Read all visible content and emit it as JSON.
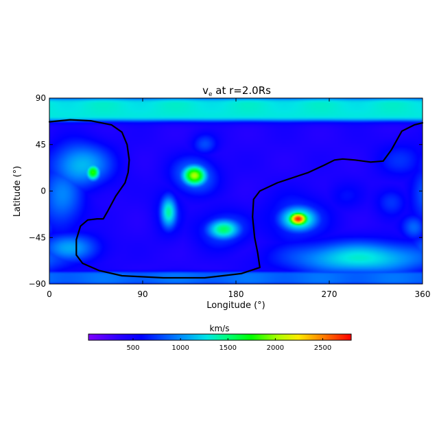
{
  "chart_data": {
    "type": "heatmap",
    "title": "v",
    "title_subscript": "e",
    "title_suffix": " at r=2.0Rs",
    "xlabel": "Longitude (°)",
    "ylabel": "Latitude (°)",
    "xlim": [
      0,
      360
    ],
    "ylim": [
      -90,
      90
    ],
    "x_ticks": [
      "0",
      "90",
      "180",
      "270",
      "360"
    ],
    "x_tick_values": [
      0,
      90,
      180,
      270,
      360
    ],
    "y_ticks": [
      "90",
      "45",
      "0",
      "−45",
      "−90"
    ],
    "y_tick_values": [
      90,
      45,
      0,
      -45,
      -90
    ],
    "colorbar": {
      "label": "km/s",
      "range": [
        30,
        2800
      ],
      "ticks": [
        "500",
        "1000",
        "1500",
        "2000",
        "2500"
      ],
      "tick_values": [
        500,
        1000,
        1500,
        2000,
        2500
      ],
      "colormap": "rainbow",
      "orientation": "horizontal"
    },
    "background_speed": 420,
    "features": [
      {
        "kind": "band",
        "lat_min": 68,
        "lat_max": 90,
        "value": 1300
      },
      {
        "kind": "band",
        "lat_min": -90,
        "lat_max": -78,
        "value": 900
      },
      {
        "kind": "blob",
        "lon": 140,
        "lat": 15,
        "rlon": 12,
        "rlat": 10,
        "value": 2050
      },
      {
        "kind": "blob",
        "lon": 140,
        "lat": 15,
        "rlon": 22,
        "rlat": 18,
        "value": 1000
      },
      {
        "kind": "blob",
        "lon": 240,
        "lat": -27,
        "rlon": 10,
        "rlat": 7,
        "value": 2750
      },
      {
        "kind": "blob",
        "lon": 240,
        "lat": -27,
        "rlon": 18,
        "rlat": 12,
        "value": 1650
      },
      {
        "kind": "blob",
        "lon": 240,
        "lat": -27,
        "rlon": 32,
        "rlat": 24,
        "value": 800
      },
      {
        "kind": "blob",
        "lon": 168,
        "lat": -37,
        "rlon": 16,
        "rlat": 10,
        "value": 1550
      },
      {
        "kind": "blob",
        "lon": 168,
        "lat": -37,
        "rlon": 26,
        "rlat": 18,
        "value": 850
      },
      {
        "kind": "blob",
        "lon": 115,
        "lat": -20,
        "rlon": 8,
        "rlat": 16,
        "value": 1400
      },
      {
        "kind": "blob",
        "lon": 115,
        "lat": -20,
        "rlon": 14,
        "rlat": 24,
        "value": 750
      },
      {
        "kind": "blob",
        "lon": 42,
        "lat": 18,
        "rlon": 7,
        "rlat": 8,
        "value": 1800
      },
      {
        "kind": "blob",
        "lon": 30,
        "lat": 25,
        "rlon": 30,
        "rlat": 22,
        "value": 1150
      },
      {
        "kind": "blob",
        "lon": 12,
        "lat": -5,
        "rlon": 22,
        "rlat": 35,
        "value": 950
      },
      {
        "kind": "blob",
        "lon": 150,
        "lat": 45,
        "rlon": 12,
        "rlat": 10,
        "value": 800
      },
      {
        "kind": "blob",
        "lon": 300,
        "lat": -65,
        "rlon": 70,
        "rlat": 16,
        "value": 1300
      },
      {
        "kind": "blob",
        "lon": 340,
        "lat": 30,
        "rlon": 25,
        "rlat": 18,
        "value": 700
      },
      {
        "kind": "blob",
        "lon": 330,
        "lat": -10,
        "rlon": 15,
        "rlat": 14,
        "value": 750
      },
      {
        "kind": "blob",
        "lon": 352,
        "lat": -35,
        "rlon": 12,
        "rlat": 12,
        "value": 900
      },
      {
        "kind": "blob",
        "lon": 285,
        "lat": -5,
        "rlon": 18,
        "rlat": 14,
        "value": 600
      },
      {
        "kind": "blob",
        "lon": 20,
        "lat": -55,
        "rlon": 30,
        "rlat": 14,
        "value": 1050
      }
    ],
    "contour": [
      [
        0,
        67
      ],
      [
        20,
        69
      ],
      [
        40,
        68
      ],
      [
        60,
        64
      ],
      [
        70,
        57
      ],
      [
        75,
        45
      ],
      [
        77,
        30
      ],
      [
        76,
        18
      ],
      [
        73,
        8
      ],
      [
        64,
        -5
      ],
      [
        56,
        -20
      ],
      [
        52,
        -27
      ],
      [
        46,
        -27
      ],
      [
        37,
        -28
      ],
      [
        30,
        -34
      ],
      [
        26,
        -47
      ],
      [
        26,
        -62
      ],
      [
        32,
        -70
      ],
      [
        48,
        -77
      ],
      [
        70,
        -82
      ],
      [
        110,
        -84
      ],
      [
        150,
        -84
      ],
      [
        185,
        -80
      ],
      [
        203,
        -74
      ],
      [
        201,
        -60
      ],
      [
        198,
        -45
      ],
      [
        196,
        -25
      ],
      [
        197,
        -8
      ],
      [
        203,
        0
      ],
      [
        220,
        8
      ],
      [
        250,
        18
      ],
      [
        265,
        25
      ],
      [
        275,
        30
      ],
      [
        283,
        31
      ],
      [
        295,
        30
      ],
      [
        310,
        28
      ],
      [
        322,
        29
      ],
      [
        330,
        40
      ],
      [
        340,
        58
      ],
      [
        352,
        64
      ],
      [
        360,
        66
      ]
    ]
  }
}
